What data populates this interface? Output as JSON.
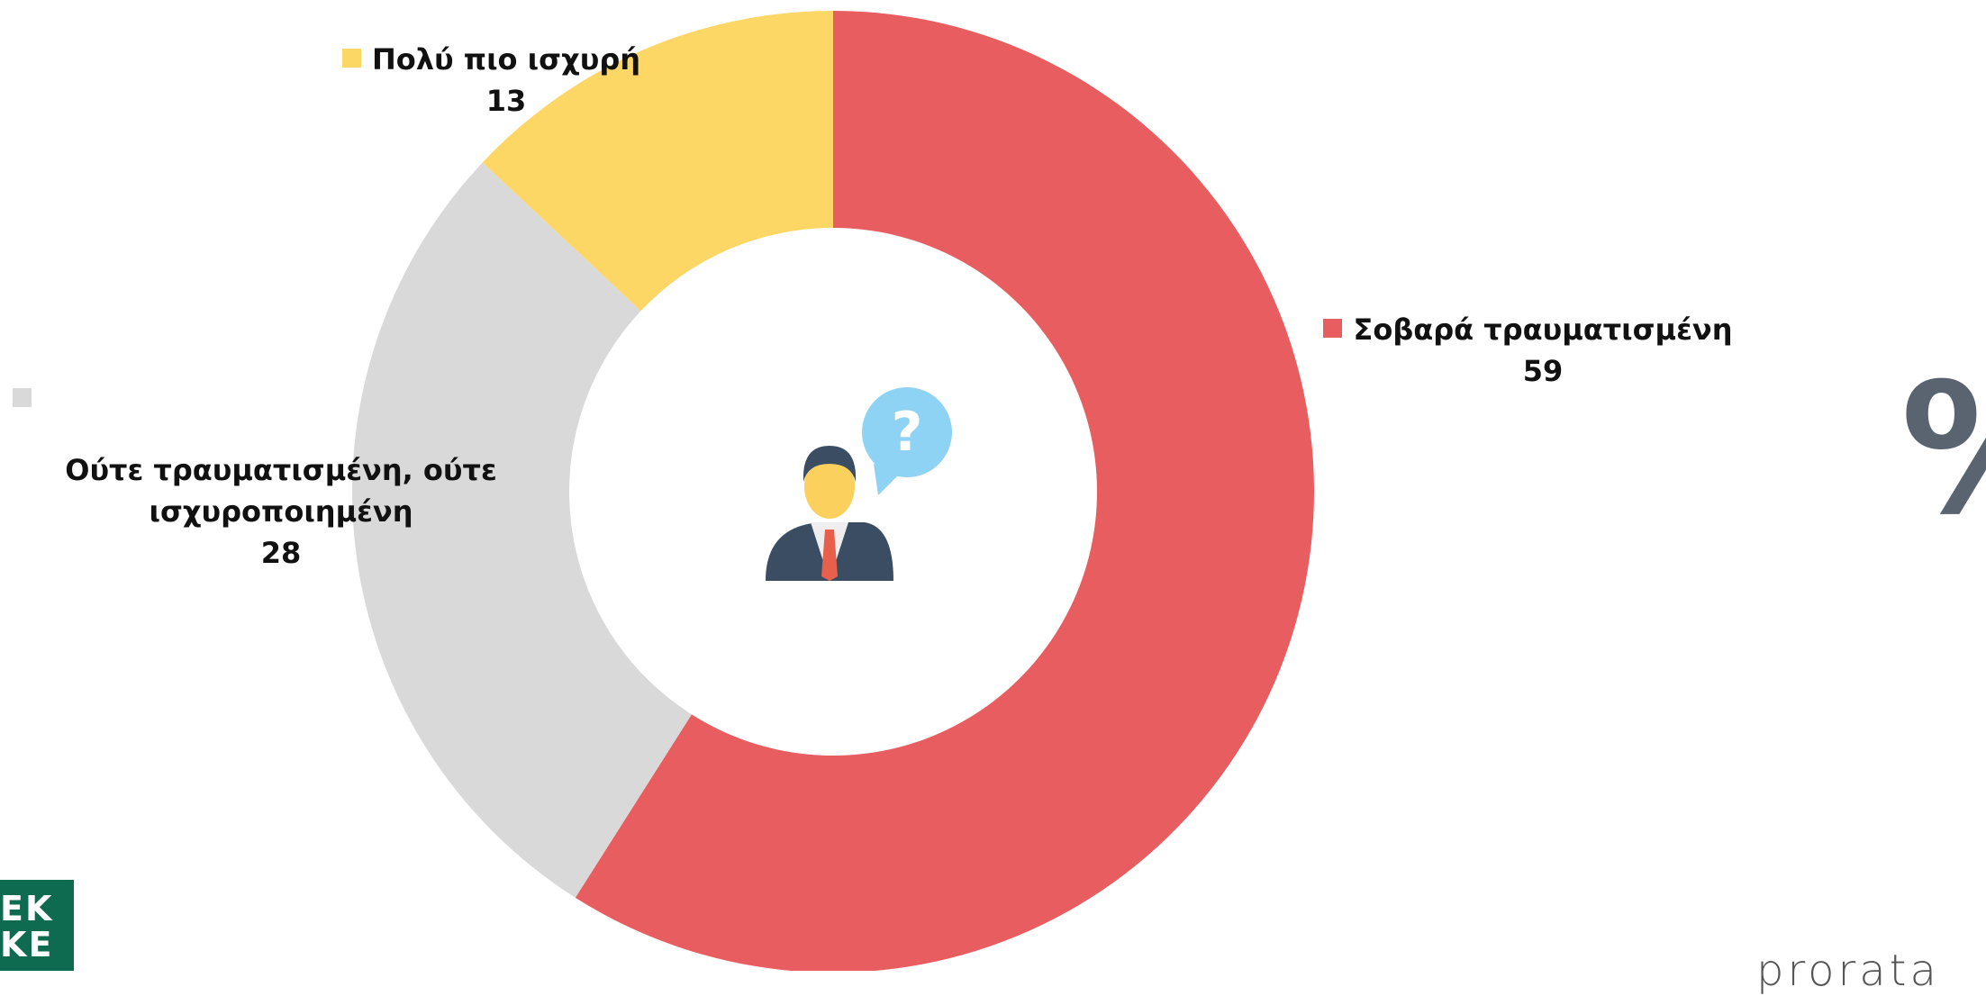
{
  "chart_data": {
    "type": "donut",
    "categories": [
      "Σοβαρά τραυματισμένη",
      "Ούτε τραυματισμένη, ούτε ισχυροποιημένη",
      "Πολύ πιο ισχυρή"
    ],
    "values": [
      59,
      28,
      13
    ],
    "colors": [
      "#E85D5F",
      "#D9D9D9",
      "#FDD766"
    ]
  },
  "percent_sign": "%",
  "logo": [
    "EK",
    "KE"
  ],
  "brand": "prorata"
}
